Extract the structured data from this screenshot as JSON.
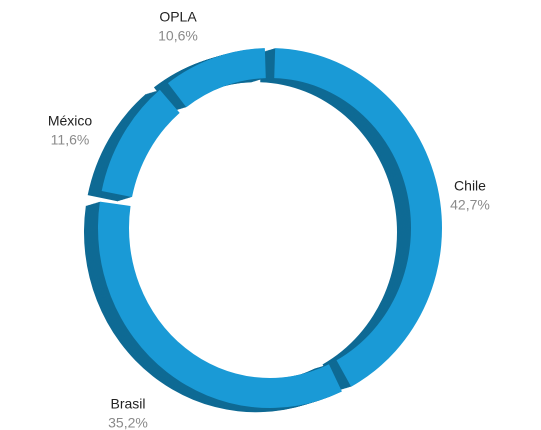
{
  "chart_data": {
    "type": "donut",
    "categories": [
      "Chile",
      "Brasil",
      "México",
      "OPLA"
    ],
    "values": [
      42.7,
      35.2,
      11.6,
      10.6
    ],
    "value_labels": [
      "42,7%",
      "35,2%",
      "11,6%",
      "10,6%"
    ],
    "color": "#1a9ad6",
    "side_color": "#0f6a94"
  }
}
